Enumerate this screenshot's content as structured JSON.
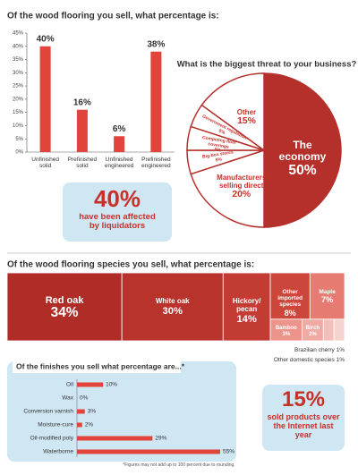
{
  "chart_data": [
    {
      "type": "bar",
      "title": "Of the wood flooring you sell, what percentage is:",
      "categories": [
        "Unfinished solid",
        "Prefinished solid",
        "Unfinished engineered",
        "Prefinished engineered"
      ],
      "values": [
        40,
        16,
        6,
        38
      ],
      "value_labels": [
        "40%",
        "16%",
        "6%",
        "38%"
      ],
      "color": "#e0443a",
      "ylim": [
        0,
        45
      ],
      "yticks": [
        {
          "value": 0,
          "label": "0%"
        },
        {
          "value": 5,
          "label": "5%"
        },
        {
          "value": 10,
          "label": "10%"
        },
        {
          "value": 15,
          "label": "15%"
        },
        {
          "value": 20,
          "label": "20%"
        },
        {
          "value": 25,
          "label": "25%"
        },
        {
          "value": 30,
          "label": "30%"
        },
        {
          "value": 35,
          "label": "35%"
        },
        {
          "value": 40,
          "label": "40%"
        },
        {
          "value": 45,
          "label": "45%"
        }
      ]
    },
    {
      "type": "pie",
      "title": "What is the biggest threat to your business?",
      "categories": [
        "The economy",
        "Manufacturers selling direct",
        "Big-box stores",
        "Competing floor coverings",
        "Government regulation",
        "Other"
      ],
      "values": [
        50,
        20,
        5,
        5,
        5,
        15
      ],
      "value_labels": [
        "50%",
        "20%",
        "5%",
        "5%",
        "5%",
        "15%"
      ],
      "colors": [
        "#b5302a",
        "#ffffff",
        "#ffffff",
        "#ffffff",
        "#ffffff",
        "#ffffff"
      ]
    },
    {
      "type": "treemap",
      "title": "Of the wood flooring species you sell, what percentage is:",
      "categories": [
        "Red oak",
        "White oak",
        "Hickory/ pecan",
        "Other imported species",
        "Maple",
        "Bamboo",
        "Birch",
        "Brazilian cherry",
        "Other domestic species"
      ],
      "values": [
        34,
        30,
        14,
        8,
        7,
        3,
        2,
        1,
        1
      ],
      "value_labels": [
        "34%",
        "30%",
        "14%",
        "8%",
        "7%",
        "3%",
        "2%",
        "1%",
        "1%"
      ],
      "colors": [
        "#b02d27",
        "#b8332c",
        "#c23c33",
        "#cc463c",
        "#e67b72",
        "#ec948c",
        "#f0aaa3",
        "#f4bfba",
        "#f7d3cf"
      ]
    },
    {
      "type": "hbar",
      "title": "Of the finishes you sell what percentage are...*",
      "categories": [
        "Oil",
        "Wax",
        "Conversion varnish",
        "Moisture-cure",
        "Oil-modified poly",
        "Waterborne"
      ],
      "values": [
        10,
        0,
        3,
        2,
        29,
        55
      ],
      "value_labels": [
        "10%",
        "0%",
        "3%",
        "2%",
        "29%",
        "55%"
      ],
      "color": "#e0443a"
    }
  ],
  "callouts": [
    {
      "value": "40%",
      "text": "have been affected by liquidators"
    },
    {
      "value": "15%",
      "text": "sold products over the Internet last year"
    }
  ],
  "footnote": "*Figures may not add up to 100 percent due to rounding."
}
